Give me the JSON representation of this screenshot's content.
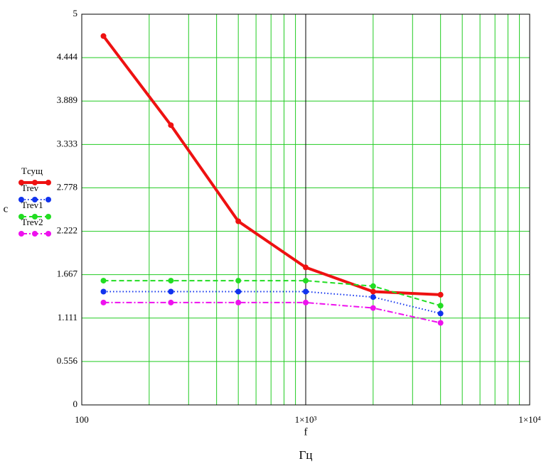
{
  "chart_data": {
    "type": "line",
    "x_label": "f",
    "y_label": "c",
    "unit_label": "Гц",
    "x": [
      125,
      250,
      500,
      1000,
      2000,
      4000
    ],
    "xlim": [
      100,
      10000
    ],
    "x_log": true,
    "xticks": [
      100,
      {
        "value": 1000,
        "label": "1×10³"
      },
      {
        "value": 10000,
        "label": "1×10⁴"
      }
    ],
    "ylim": [
      0,
      5
    ],
    "yticks": [
      0,
      0.556,
      1.111,
      1.667,
      2.222,
      2.778,
      3.333,
      3.889,
      4.444,
      5
    ],
    "grid": true,
    "grid_color": "#22cc22",
    "series": [
      {
        "name": "Tсущ",
        "color": "#ee1111",
        "line_style": "solid",
        "values": [
          4.72,
          3.58,
          2.35,
          1.76,
          1.45,
          1.41
        ]
      },
      {
        "name": "Trev",
        "color": "#1133ee",
        "line_style": "dotted",
        "values": [
          1.45,
          1.45,
          1.45,
          1.45,
          1.38,
          1.17
        ]
      },
      {
        "name": "Trev1",
        "color": "#22dd22",
        "line_style": "dashed",
        "values": [
          1.59,
          1.59,
          1.59,
          1.59,
          1.52,
          1.27
        ]
      },
      {
        "name": "Trev2",
        "color": "#ee11ee",
        "line_style": "dashdot",
        "values": [
          1.31,
          1.31,
          1.31,
          1.31,
          1.24,
          1.05
        ]
      }
    ]
  }
}
